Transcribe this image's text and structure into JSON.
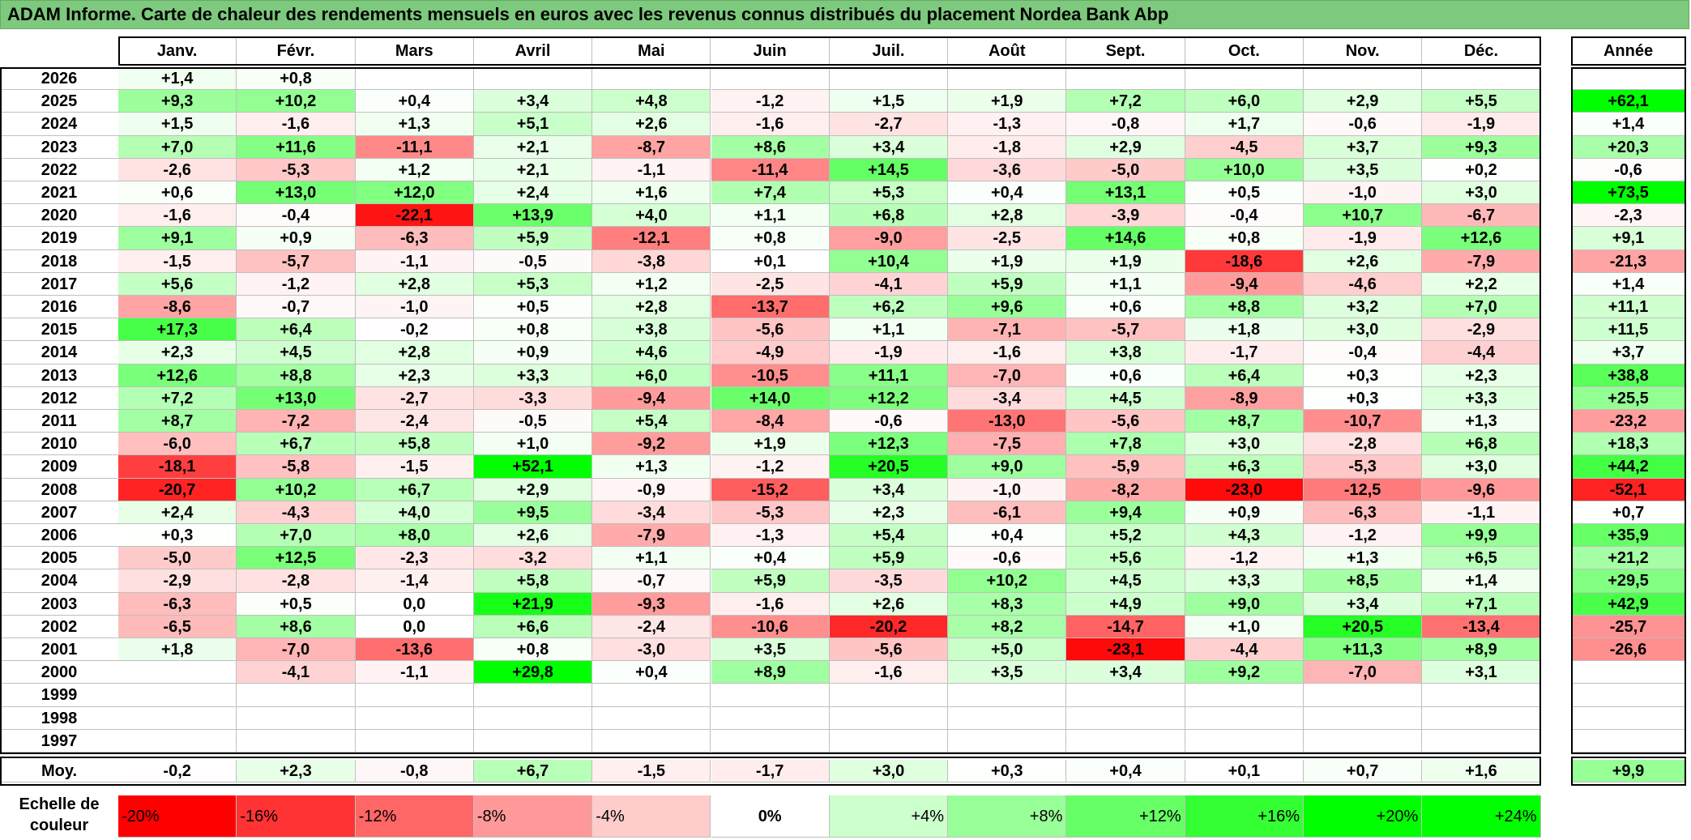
{
  "title": "ADAM Informe. Carte de chaleur des rendements mensuels en euros avec les revenus connus distribués du placement Nordea Bank Abp",
  "columns": [
    "Janv.",
    "Févr.",
    "Mars",
    "Avril",
    "Mai",
    "Juin",
    "Juil.",
    "Août",
    "Sept.",
    "Oct.",
    "Nov.",
    "Déc."
  ],
  "year_column_label": "Année",
  "average_row_label": "Moy.",
  "scale_label": "Echelle de couleur",
  "colors": {
    "negative_max": "#ff0000",
    "neutral": "#ffffff",
    "positive_max": "#00ff00",
    "title_bar": "#7dc97d"
  },
  "chart_data": {
    "type": "heatmap",
    "title": "ADAM Informe. Carte de chaleur des rendements mensuels en euros avec les revenus connus distribués du placement Nordea Bank Abp",
    "x_categories": [
      "Janv.",
      "Févr.",
      "Mars",
      "Avril",
      "Mai",
      "Juin",
      "Juil.",
      "Août",
      "Sept.",
      "Oct.",
      "Nov.",
      "Déc."
    ],
    "rows": [
      {
        "year": "2026",
        "values": [
          "+1,4",
          "+0,8",
          "",
          "",
          "",
          "",
          "",
          "",
          "",
          "",
          "",
          ""
        ],
        "annual": ""
      },
      {
        "year": "2025",
        "values": [
          "+9,3",
          "+10,2",
          "+0,4",
          "+3,4",
          "+4,8",
          "-1,2",
          "+1,5",
          "+1,9",
          "+7,2",
          "+6,0",
          "+2,9",
          "+5,5"
        ],
        "annual": "+62,1"
      },
      {
        "year": "2024",
        "values": [
          "+1,5",
          "-1,6",
          "+1,3",
          "+5,1",
          "+2,6",
          "-1,6",
          "-2,7",
          "-1,3",
          "-0,8",
          "+1,7",
          "-0,6",
          "-1,9"
        ],
        "annual": "+1,4"
      },
      {
        "year": "2023",
        "values": [
          "+7,0",
          "+11,6",
          "-11,1",
          "+2,1",
          "-8,7",
          "+8,6",
          "+3,4",
          "-1,8",
          "+2,9",
          "-4,5",
          "+3,7",
          "+9,3"
        ],
        "annual": "+20,3"
      },
      {
        "year": "2022",
        "values": [
          "-2,6",
          "-5,3",
          "+1,2",
          "+2,1",
          "-1,1",
          "-11,4",
          "+14,5",
          "-3,6",
          "-5,0",
          "+10,0",
          "+3,5",
          "+0,2"
        ],
        "annual": "-0,6"
      },
      {
        "year": "2021",
        "values": [
          "+0,6",
          "+13,0",
          "+12,0",
          "+2,4",
          "+1,6",
          "+7,4",
          "+5,3",
          "+0,4",
          "+13,1",
          "+0,5",
          "-1,0",
          "+3,0"
        ],
        "annual": "+73,5"
      },
      {
        "year": "2020",
        "values": [
          "-1,6",
          "-0,4",
          "-22,1",
          "+13,9",
          "+4,0",
          "+1,1",
          "+6,8",
          "+2,8",
          "-3,9",
          "-0,4",
          "+10,7",
          "-6,7"
        ],
        "annual": "-2,3"
      },
      {
        "year": "2019",
        "values": [
          "+9,1",
          "+0,9",
          "-6,3",
          "+5,9",
          "-12,1",
          "+0,8",
          "-9,0",
          "-2,5",
          "+14,6",
          "+0,8",
          "-1,9",
          "+12,6"
        ],
        "annual": "+9,1"
      },
      {
        "year": "2018",
        "values": [
          "-1,5",
          "-5,7",
          "-1,1",
          "-0,5",
          "-3,8",
          "+0,1",
          "+10,4",
          "+1,9",
          "+1,9",
          "-18,6",
          "+2,6",
          "-7,9"
        ],
        "annual": "-21,3"
      },
      {
        "year": "2017",
        "values": [
          "+5,6",
          "-1,2",
          "+2,8",
          "+5,3",
          "+1,2",
          "-2,5",
          "-4,1",
          "+5,9",
          "+1,1",
          "-9,4",
          "-4,6",
          "+2,2"
        ],
        "annual": "+1,4"
      },
      {
        "year": "2016",
        "values": [
          "-8,6",
          "-0,7",
          "-1,0",
          "+0,5",
          "+2,8",
          "-13,7",
          "+6,2",
          "+9,6",
          "+0,6",
          "+8,8",
          "+3,2",
          "+7,0"
        ],
        "annual": "+11,1"
      },
      {
        "year": "2015",
        "values": [
          "+17,3",
          "+6,4",
          "-0,2",
          "+0,8",
          "+3,8",
          "-5,6",
          "+1,1",
          "-7,1",
          "-5,7",
          "+1,8",
          "+3,0",
          "-2,9"
        ],
        "annual": "+11,5"
      },
      {
        "year": "2014",
        "values": [
          "+2,3",
          "+4,5",
          "+2,8",
          "+0,9",
          "+4,6",
          "-4,9",
          "-1,9",
          "-1,6",
          "+3,8",
          "-1,7",
          "-0,4",
          "-4,4"
        ],
        "annual": "+3,7"
      },
      {
        "year": "2013",
        "values": [
          "+12,6",
          "+8,8",
          "+2,3",
          "+3,3",
          "+6,0",
          "-10,5",
          "+11,1",
          "-7,0",
          "+0,6",
          "+6,4",
          "+0,3",
          "+2,3"
        ],
        "annual": "+38,8"
      },
      {
        "year": "2012",
        "values": [
          "+7,2",
          "+13,0",
          "-2,7",
          "-3,3",
          "-9,4",
          "+14,0",
          "+12,2",
          "-3,4",
          "+4,5",
          "-8,9",
          "+0,3",
          "+3,3"
        ],
        "annual": "+25,5"
      },
      {
        "year": "2011",
        "values": [
          "+8,7",
          "-7,2",
          "-2,4",
          "-0,5",
          "+5,4",
          "-8,4",
          "-0,6",
          "-13,0",
          "-5,6",
          "+8,7",
          "-10,7",
          "+1,3"
        ],
        "annual": "-23,2"
      },
      {
        "year": "2010",
        "values": [
          "-6,0",
          "+6,7",
          "+5,8",
          "+1,0",
          "-9,2",
          "+1,9",
          "+12,3",
          "-7,5",
          "+7,8",
          "+3,0",
          "-2,8",
          "+6,8"
        ],
        "annual": "+18,3"
      },
      {
        "year": "2009",
        "values": [
          "-18,1",
          "-5,8",
          "-1,5",
          "+52,1",
          "+1,3",
          "-1,2",
          "+20,5",
          "+9,0",
          "-5,9",
          "+6,3",
          "-5,3",
          "+3,0"
        ],
        "annual": "+44,2"
      },
      {
        "year": "2008",
        "values": [
          "-20,7",
          "+10,2",
          "+6,7",
          "+2,9",
          "-0,9",
          "-15,2",
          "+3,4",
          "-1,0",
          "-8,2",
          "-23,0",
          "-12,5",
          "-9,6"
        ],
        "annual": "-52,1"
      },
      {
        "year": "2007",
        "values": [
          "+2,4",
          "-4,3",
          "+4,0",
          "+9,5",
          "-3,4",
          "-5,3",
          "+2,3",
          "-6,1",
          "+9,4",
          "+0,9",
          "-6,3",
          "-1,1"
        ],
        "annual": "+0,7"
      },
      {
        "year": "2006",
        "values": [
          "+0,3",
          "+7,0",
          "+8,0",
          "+2,6",
          "-7,9",
          "-1,3",
          "+5,4",
          "+0,4",
          "+5,2",
          "+4,3",
          "-1,2",
          "+9,9"
        ],
        "annual": "+35,9"
      },
      {
        "year": "2005",
        "values": [
          "-5,0",
          "+12,5",
          "-2,3",
          "-3,2",
          "+1,1",
          "+0,4",
          "+5,9",
          "-0,6",
          "+5,6",
          "-1,2",
          "+1,3",
          "+6,5"
        ],
        "annual": "+21,2"
      },
      {
        "year": "2004",
        "values": [
          "-2,9",
          "-2,8",
          "-1,4",
          "+5,8",
          "-0,7",
          "+5,9",
          "-3,5",
          "+10,2",
          "+4,5",
          "+3,3",
          "+8,5",
          "+1,4"
        ],
        "annual": "+29,5"
      },
      {
        "year": "2003",
        "values": [
          "-6,3",
          "+0,5",
          "0,0",
          "+21,9",
          "-9,3",
          "-1,6",
          "+2,6",
          "+8,3",
          "+4,9",
          "+9,0",
          "+3,4",
          "+7,1"
        ],
        "annual": "+42,9"
      },
      {
        "year": "2002",
        "values": [
          "-6,5",
          "+8,6",
          "0,0",
          "+6,6",
          "-2,4",
          "-10,6",
          "-20,2",
          "+8,2",
          "-14,7",
          "+1,0",
          "+20,5",
          "-13,4"
        ],
        "annual": "-25,7"
      },
      {
        "year": "2001",
        "values": [
          "+1,8",
          "-7,0",
          "-13,6",
          "+0,8",
          "-3,0",
          "+3,5",
          "-5,6",
          "+5,0",
          "-23,1",
          "-4,4",
          "+11,3",
          "+8,9"
        ],
        "annual": "-26,6"
      },
      {
        "year": "2000",
        "values": [
          "",
          "-4,1",
          "-1,1",
          "+29,8",
          "+0,4",
          "+8,9",
          "-1,6",
          "+3,5",
          "+3,4",
          "+9,2",
          "-7,0",
          "+3,1"
        ],
        "annual": ""
      },
      {
        "year": "1999",
        "values": [
          "",
          "",
          "",
          "",
          "",
          "",
          "",
          "",
          "",
          "",
          "",
          ""
        ],
        "annual": ""
      },
      {
        "year": "1998",
        "values": [
          "",
          "",
          "",
          "",
          "",
          "",
          "",
          "",
          "",
          "",
          "",
          ""
        ],
        "annual": ""
      },
      {
        "year": "1997",
        "values": [
          "",
          "",
          "",
          "",
          "",
          "",
          "",
          "",
          "",
          "",
          "",
          ""
        ],
        "annual": ""
      }
    ],
    "average": {
      "values": [
        "-0,2",
        "+2,3",
        "-0,8",
        "+6,7",
        "-1,5",
        "-1,7",
        "+3,0",
        "+0,3",
        "+0,4",
        "+0,1",
        "+0,7",
        "+1,6"
      ],
      "annual": "+9,9"
    },
    "color_scale": [
      "-20%",
      "-16%",
      "-12%",
      "-8%",
      "-4%",
      "0%",
      "+4%",
      "+8%",
      "+12%",
      "+16%",
      "+20%",
      "+24%"
    ]
  }
}
